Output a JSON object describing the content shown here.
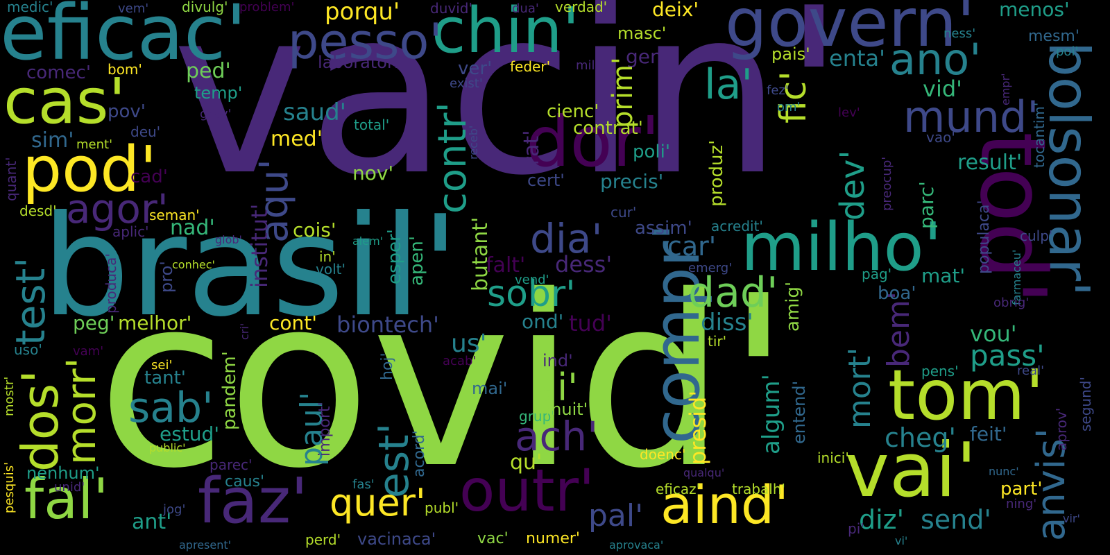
{
  "palette": {
    "bg": "#000000",
    "c1": "#482878",
    "c2": "#3e4989",
    "c3": "#31688e",
    "c4": "#26828e",
    "c5": "#1f9e89",
    "c6": "#35b779",
    "c7": "#6ece58",
    "c8": "#8fd744",
    "c9": "#b5de2b",
    "c10": "#fde725",
    "c0": "#440154"
  },
  "words": [
    {
      "text": "vacin'",
      "color": "c1"
    },
    {
      "text": "covid'",
      "color": "c8"
    },
    {
      "text": "brasil'",
      "color": "c4"
    },
    {
      "text": "eficac'",
      "color": "c4"
    },
    {
      "text": "govern'",
      "color": "c2"
    },
    {
      "text": "chin'",
      "color": "c5"
    },
    {
      "text": "pesso'",
      "color": "c2"
    },
    {
      "text": "cas'",
      "color": "c9"
    },
    {
      "text": "pod'",
      "color": "c10"
    },
    {
      "text": "dor'",
      "color": "c0"
    },
    {
      "text": "milho'",
      "color": "c5"
    },
    {
      "text": "bolsonar'",
      "color": "c3"
    },
    {
      "text": "tod'",
      "color": "c0"
    },
    {
      "text": "mund'",
      "color": "c2"
    },
    {
      "text": "ano'",
      "color": "c4"
    },
    {
      "text": "la'",
      "color": "c5"
    },
    {
      "text": "fic'",
      "color": "c9"
    },
    {
      "text": "aqu'",
      "color": "c2"
    },
    {
      "text": "contr'",
      "color": "c5"
    },
    {
      "text": "agor'",
      "color": "c1"
    },
    {
      "text": "test'",
      "color": "c4"
    },
    {
      "text": "dos'",
      "color": "c9"
    },
    {
      "text": "morr'",
      "color": "c9"
    },
    {
      "text": "sab'",
      "color": "c4"
    },
    {
      "text": "fal'",
      "color": "c8"
    },
    {
      "text": "faz'",
      "color": "c1"
    },
    {
      "text": "outr'",
      "color": "c0"
    },
    {
      "text": "aind'",
      "color": "c10"
    },
    {
      "text": "vai'",
      "color": "c9"
    },
    {
      "text": "tom'",
      "color": "c9"
    },
    {
      "text": "compr'",
      "color": "c3"
    },
    {
      "text": "anvis'",
      "color": "c3"
    },
    {
      "text": "dad'",
      "color": "c7"
    },
    {
      "text": "dia'",
      "color": "c2"
    },
    {
      "text": "ach'",
      "color": "c1"
    },
    {
      "text": "sobr'",
      "color": "c5"
    },
    {
      "text": "est'",
      "color": "c4"
    },
    {
      "text": "quer'",
      "color": "c10"
    },
    {
      "text": "ai'",
      "color": "c8"
    },
    {
      "text": "paul'",
      "color": "c4"
    },
    {
      "text": "mort'",
      "color": "c4"
    },
    {
      "text": "bem'",
      "color": "c1"
    },
    {
      "text": "dev'",
      "color": "c5"
    },
    {
      "text": "pass'",
      "color": "c5"
    },
    {
      "text": "cheg'",
      "color": "c4"
    },
    {
      "text": "diz'",
      "color": "c5"
    },
    {
      "text": "send'",
      "color": "c4"
    },
    {
      "text": "pal'",
      "color": "c2"
    },
    {
      "text": "porqu'",
      "color": "c10"
    },
    {
      "text": "deix'",
      "color": "c10"
    },
    {
      "text": "menos'",
      "color": "c5"
    },
    {
      "text": "medic'",
      "color": "c4"
    },
    {
      "text": "vem'",
      "color": "c2"
    },
    {
      "text": "divulg'",
      "color": "c8"
    },
    {
      "text": "problem'",
      "color": "c0"
    },
    {
      "text": "duvid'",
      "color": "c1"
    },
    {
      "text": "dua'",
      "color": "c1"
    },
    {
      "text": "verdad'",
      "color": "c9"
    },
    {
      "text": "masc'",
      "color": "c9"
    },
    {
      "text": "ness'",
      "color": "c4"
    },
    {
      "text": "mesm'",
      "color": "c3"
    },
    {
      "text": "poi'",
      "color": "c4"
    },
    {
      "text": "comec'",
      "color": "c1"
    },
    {
      "text": "bom'",
      "color": "c10"
    },
    {
      "text": "ped'",
      "color": "c7"
    },
    {
      "text": "temp'",
      "color": "c5"
    },
    {
      "text": "pov'",
      "color": "c2"
    },
    {
      "text": "laboratori'",
      "color": "c1"
    },
    {
      "text": "ver'",
      "color": "c2"
    },
    {
      "text": "feder'",
      "color": "c10"
    },
    {
      "text": "mil'",
      "color": "c1"
    },
    {
      "text": "exist'",
      "color": "c2"
    },
    {
      "text": "gent'",
      "color": "c1"
    },
    {
      "text": "pais'",
      "color": "c9"
    },
    {
      "text": "enta'",
      "color": "c4"
    },
    {
      "text": "vid'",
      "color": "c6"
    },
    {
      "text": "fez'",
      "color": "c2"
    },
    {
      "text": "om'",
      "color": "c4"
    },
    {
      "text": "lev'",
      "color": "c0"
    },
    {
      "text": "empr'",
      "color": "c1"
    },
    {
      "text": "tocantim'",
      "color": "c3"
    },
    {
      "text": "sim'",
      "color": "c3"
    },
    {
      "text": "ment'",
      "color": "c9"
    },
    {
      "text": "deu'",
      "color": "c2"
    },
    {
      "text": "grav'",
      "color": "c1"
    },
    {
      "text": "saud'",
      "color": "c4"
    },
    {
      "text": "total'",
      "color": "c5"
    },
    {
      "text": "med'",
      "color": "c10"
    },
    {
      "text": "cienc'",
      "color": "c9"
    },
    {
      "text": "contrat'",
      "color": "c9"
    },
    {
      "text": "prim'",
      "color": "c9"
    },
    {
      "text": "produz'",
      "color": "c9"
    },
    {
      "text": "poli'",
      "color": "c5"
    },
    {
      "text": "vao'",
      "color": "c2"
    },
    {
      "text": "result'",
      "color": "c5"
    },
    {
      "text": "nov'",
      "color": "c8"
    },
    {
      "text": "cert'",
      "color": "c2"
    },
    {
      "text": "precis'",
      "color": "c4"
    },
    {
      "text": "trat'",
      "color": "c1"
    },
    {
      "text": "receb'",
      "color": "c2"
    },
    {
      "text": "cad'",
      "color": "c0"
    },
    {
      "text": "quant'",
      "color": "c1"
    },
    {
      "text": "desd'",
      "color": "c9"
    },
    {
      "text": "seman'",
      "color": "c10"
    },
    {
      "text": "aplic'",
      "color": "c1"
    },
    {
      "text": "glob'",
      "color": "c1"
    },
    {
      "text": "nad'",
      "color": "c6"
    },
    {
      "text": "institut'",
      "color": "c1"
    },
    {
      "text": "cois'",
      "color": "c9"
    },
    {
      "text": "alem'",
      "color": "c5"
    },
    {
      "text": "car'",
      "color": "c3"
    },
    {
      "text": "cur'",
      "color": "c2"
    },
    {
      "text": "assim'",
      "color": "c2"
    },
    {
      "text": "acredit'",
      "color": "c4"
    },
    {
      "text": "culp'",
      "color": "c2"
    },
    {
      "text": "parc'",
      "color": "c6"
    },
    {
      "text": "preocup'",
      "color": "c1"
    },
    {
      "text": "produca'",
      "color": "c1"
    },
    {
      "text": "conhec'",
      "color": "c9"
    },
    {
      "text": "in'",
      "color": "c9"
    },
    {
      "text": "volt'",
      "color": "c4"
    },
    {
      "text": "falt'",
      "color": "c0"
    },
    {
      "text": "dess'",
      "color": "c1"
    },
    {
      "text": "pro'",
      "color": "c2"
    },
    {
      "text": "esper'",
      "color": "c5"
    },
    {
      "text": "apen'",
      "color": "c6"
    },
    {
      "text": "butant'",
      "color": "c8"
    },
    {
      "text": "vend'",
      "color": "c5"
    },
    {
      "text": "emerg'",
      "color": "c2"
    },
    {
      "text": "populaca'",
      "color": "c2"
    },
    {
      "text": "farmaceu'",
      "color": "c4"
    },
    {
      "text": "peg'",
      "color": "c7"
    },
    {
      "text": "melhor'",
      "color": "c9"
    },
    {
      "text": "cont'",
      "color": "c10"
    },
    {
      "text": "biontech'",
      "color": "c2"
    },
    {
      "text": "ond'",
      "color": "c4"
    },
    {
      "text": "tud'",
      "color": "c0"
    },
    {
      "text": "diss'",
      "color": "c4"
    },
    {
      "text": "amig'",
      "color": "c8"
    },
    {
      "text": "pag'",
      "color": "c5"
    },
    {
      "text": "boa'",
      "color": "c3"
    },
    {
      "text": "mat'",
      "color": "c5"
    },
    {
      "text": "obrig'",
      "color": "c1"
    },
    {
      "text": "cri'",
      "color": "c1"
    },
    {
      "text": "uso'",
      "color": "c4"
    },
    {
      "text": "vam'",
      "color": "c0"
    },
    {
      "text": "pandem'",
      "color": "c8"
    },
    {
      "text": "us'",
      "color": "c4"
    },
    {
      "text": "tir'",
      "color": "c9"
    },
    {
      "text": "vou'",
      "color": "c6"
    },
    {
      "text": "ind'",
      "color": "c1"
    },
    {
      "text": "hoj'",
      "color": "c3"
    },
    {
      "text": "acab'",
      "color": "c0"
    },
    {
      "text": "sei'",
      "color": "c10"
    },
    {
      "text": "tant'",
      "color": "c4"
    },
    {
      "text": "mai'",
      "color": "c3"
    },
    {
      "text": "pens'",
      "color": "c5"
    },
    {
      "text": "real'",
      "color": "c2"
    },
    {
      "text": "segund'",
      "color": "c2"
    },
    {
      "text": "aprov'",
      "color": "c1"
    },
    {
      "text": "mostr'",
      "color": "c9"
    },
    {
      "text": "estud'",
      "color": "c5"
    },
    {
      "text": "import'",
      "color": "c1"
    },
    {
      "text": "grup'",
      "color": "c6"
    },
    {
      "text": "muit'",
      "color": "c8"
    },
    {
      "text": "presid'",
      "color": "c10"
    },
    {
      "text": "algum'",
      "color": "c5"
    },
    {
      "text": "entend'",
      "color": "c3"
    },
    {
      "text": "feit'",
      "color": "c3"
    },
    {
      "text": "pesquis'",
      "color": "c10"
    },
    {
      "text": "public'",
      "color": "c9"
    },
    {
      "text": "nenhum'",
      "color": "c5"
    },
    {
      "text": "qu'",
      "color": "c9"
    },
    {
      "text": "acord'",
      "color": "c3"
    },
    {
      "text": "doenc'",
      "color": "c10"
    },
    {
      "text": "inici'",
      "color": "c9"
    },
    {
      "text": "nunc'",
      "color": "c3"
    },
    {
      "text": "unid'",
      "color": "c1"
    },
    {
      "text": "parec'",
      "color": "c1"
    },
    {
      "text": "caus'",
      "color": "c4"
    },
    {
      "text": "fas'",
      "color": "c4"
    },
    {
      "text": "qualqu'",
      "color": "c1"
    },
    {
      "text": "eficaz'",
      "color": "c9"
    },
    {
      "text": "trabalh'",
      "color": "c9"
    },
    {
      "text": "part'",
      "color": "c10"
    },
    {
      "text": "ning'",
      "color": "c1"
    },
    {
      "text": "vir'",
      "color": "c2"
    },
    {
      "text": "ant'",
      "color": "c5"
    },
    {
      "text": "jog'",
      "color": "c2"
    },
    {
      "text": "publ'",
      "color": "c9"
    },
    {
      "text": "pi'",
      "color": "c1"
    },
    {
      "text": "vi'",
      "color": "c4"
    },
    {
      "text": "apresent'",
      "color": "c3"
    },
    {
      "text": "perd'",
      "color": "c9"
    },
    {
      "text": "vacinaca'",
      "color": "c2"
    },
    {
      "text": "vac'",
      "color": "c8"
    },
    {
      "text": "numer'",
      "color": "c10"
    },
    {
      "text": "aprovaca'",
      "color": "c4"
    }
  ]
}
